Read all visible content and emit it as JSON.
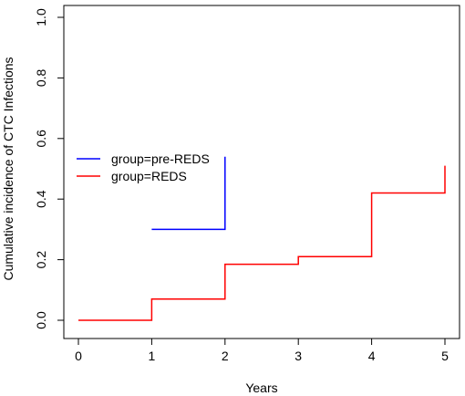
{
  "chart_data": {
    "type": "line",
    "step": true,
    "xlabel": "Years",
    "ylabel": "Cumulative incidence of CTC Infections",
    "xlim": [
      0,
      5
    ],
    "ylim": [
      0,
      1
    ],
    "x_ticks": [
      "0",
      "1",
      "2",
      "3",
      "4",
      "5"
    ],
    "y_ticks": [
      "0.0",
      "0.2",
      "0.4",
      "0.6",
      "0.8",
      "1.0"
    ],
    "grid": false,
    "legend_position": "middle-left",
    "series": [
      {
        "name": "group=pre-REDS",
        "color": "#0000ff",
        "x": [
          1,
          2
        ],
        "y": [
          0.3,
          0.54
        ]
      },
      {
        "name": "group=REDS",
        "color": "#ff0000",
        "x": [
          0,
          1,
          2,
          3,
          4,
          5
        ],
        "y": [
          0.0,
          0.07,
          0.185,
          0.21,
          0.42,
          0.51
        ]
      }
    ]
  }
}
